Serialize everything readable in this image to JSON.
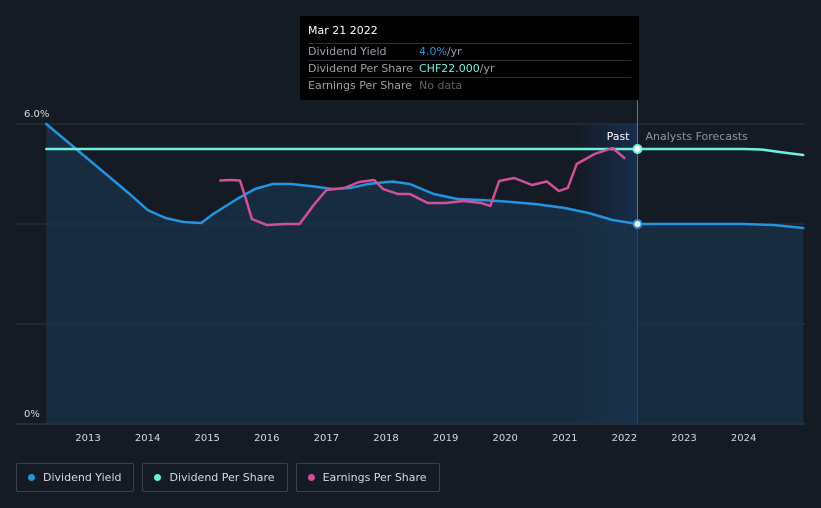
{
  "tooltip": {
    "date": "Mar 21 2022",
    "rows": [
      {
        "label": "Dividend Yield",
        "value": "4.0%",
        "unit": " /yr"
      },
      {
        "label": "Dividend Per Share",
        "value": "CHF22.000",
        "unit": " /yr"
      },
      {
        "label": "Earnings Per Share",
        "value": "No data",
        "unit": ""
      }
    ]
  },
  "legend": [
    {
      "label": "Dividend Yield",
      "color": "#2394df"
    },
    {
      "label": "Dividend Per Share",
      "color": "#6ef2e0"
    },
    {
      "label": "Earnings Per Share",
      "color": "#d44f9a"
    }
  ],
  "chart_data": {
    "type": "line",
    "ylim": [
      0,
      6
    ],
    "y_ticks": [
      {
        "value": 6,
        "label": "6.0%"
      },
      {
        "value": 0,
        "label": "0%"
      }
    ],
    "gridlines": [
      6,
      4,
      2
    ],
    "xlim": [
      2012.3,
      2025.0
    ],
    "x_ticks": [
      "2013",
      "2014",
      "2015",
      "2016",
      "2017",
      "2018",
      "2019",
      "2020",
      "2021",
      "2022",
      "2023",
      "2024"
    ],
    "past_label": "Past",
    "forecast_label": "Analysts Forecasts",
    "past_band": [
      2021.2,
      2022.22
    ],
    "current_x": 2022.22,
    "colors": {
      "yield": "#2394df",
      "dps": "#6ef2e0",
      "eps": "#d44f9a"
    },
    "series": [
      {
        "name": "Dividend Yield",
        "points": [
          [
            2012.3,
            6.0
          ],
          [
            2012.6,
            5.7
          ],
          [
            2012.9,
            5.4
          ],
          [
            2013.3,
            5.0
          ],
          [
            2013.7,
            4.6
          ],
          [
            2014.0,
            4.28
          ],
          [
            2014.3,
            4.12
          ],
          [
            2014.6,
            4.04
          ],
          [
            2014.9,
            4.02
          ],
          [
            2015.1,
            4.2
          ],
          [
            2015.5,
            4.5
          ],
          [
            2015.8,
            4.7
          ],
          [
            2016.1,
            4.8
          ],
          [
            2016.4,
            4.8
          ],
          [
            2016.8,
            4.75
          ],
          [
            2017.1,
            4.7
          ],
          [
            2017.4,
            4.72
          ],
          [
            2017.7,
            4.8
          ],
          [
            2018.1,
            4.85
          ],
          [
            2018.4,
            4.8
          ],
          [
            2018.8,
            4.6
          ],
          [
            2019.2,
            4.5
          ],
          [
            2019.6,
            4.48
          ],
          [
            2020.0,
            4.45
          ],
          [
            2020.5,
            4.4
          ],
          [
            2021.0,
            4.32
          ],
          [
            2021.4,
            4.22
          ],
          [
            2021.8,
            4.08
          ],
          [
            2022.22,
            4.0
          ],
          [
            2023.0,
            4.0
          ],
          [
            2024.0,
            4.0
          ],
          [
            2024.5,
            3.98
          ],
          [
            2025.0,
            3.92
          ]
        ]
      },
      {
        "name": "Dividend Per Share",
        "points": [
          [
            2012.3,
            5.5
          ],
          [
            2013.0,
            5.5
          ],
          [
            2014.0,
            5.5
          ],
          [
            2015.0,
            5.5
          ],
          [
            2016.0,
            5.5
          ],
          [
            2017.0,
            5.5
          ],
          [
            2018.0,
            5.5
          ],
          [
            2019.0,
            5.5
          ],
          [
            2020.0,
            5.5
          ],
          [
            2021.0,
            5.5
          ],
          [
            2022.22,
            5.5
          ],
          [
            2023.0,
            5.5
          ],
          [
            2024.0,
            5.5
          ],
          [
            2024.3,
            5.49
          ],
          [
            2024.6,
            5.44
          ],
          [
            2025.0,
            5.38
          ]
        ]
      },
      {
        "name": "Earnings Per Share",
        "points": [
          [
            2015.22,
            4.87
          ],
          [
            2015.4,
            4.88
          ],
          [
            2015.55,
            4.87
          ],
          [
            2015.65,
            4.5
          ],
          [
            2015.75,
            4.1
          ],
          [
            2016.0,
            3.98
          ],
          [
            2016.3,
            4.0
          ],
          [
            2016.55,
            4.0
          ],
          [
            2016.8,
            4.4
          ],
          [
            2017.0,
            4.68
          ],
          [
            2017.3,
            4.72
          ],
          [
            2017.55,
            4.84
          ],
          [
            2017.8,
            4.88
          ],
          [
            2017.95,
            4.7
          ],
          [
            2018.2,
            4.6
          ],
          [
            2018.4,
            4.6
          ],
          [
            2018.7,
            4.42
          ],
          [
            2019.0,
            4.42
          ],
          [
            2019.3,
            4.46
          ],
          [
            2019.6,
            4.42
          ],
          [
            2019.75,
            4.36
          ],
          [
            2019.9,
            4.86
          ],
          [
            2020.15,
            4.92
          ],
          [
            2020.45,
            4.78
          ],
          [
            2020.7,
            4.85
          ],
          [
            2020.9,
            4.66
          ],
          [
            2021.05,
            4.72
          ],
          [
            2021.2,
            5.2
          ],
          [
            2021.5,
            5.4
          ],
          [
            2021.8,
            5.52
          ],
          [
            2022.0,
            5.32
          ]
        ]
      }
    ],
    "markers": [
      {
        "series": "Dividend Per Share",
        "x": 2022.22,
        "y": 5.5
      },
      {
        "series": "Dividend Yield",
        "x": 2022.22,
        "y": 4.0
      }
    ]
  }
}
